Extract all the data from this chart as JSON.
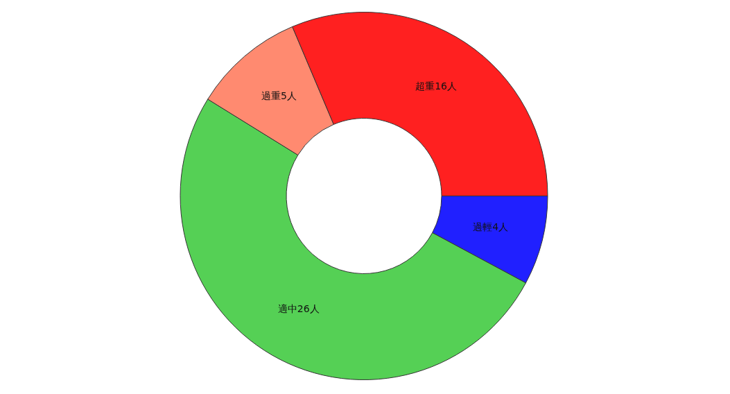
{
  "chart_data": {
    "type": "donut",
    "categories": [
      "過輕4人",
      "適中26人",
      "過重5人",
      "超重16人"
    ],
    "values": [
      4,
      26,
      5,
      16
    ],
    "colors": [
      "#2020ff",
      "#55d055",
      "#ff8a70",
      "#ff2020"
    ],
    "legend": false
  }
}
